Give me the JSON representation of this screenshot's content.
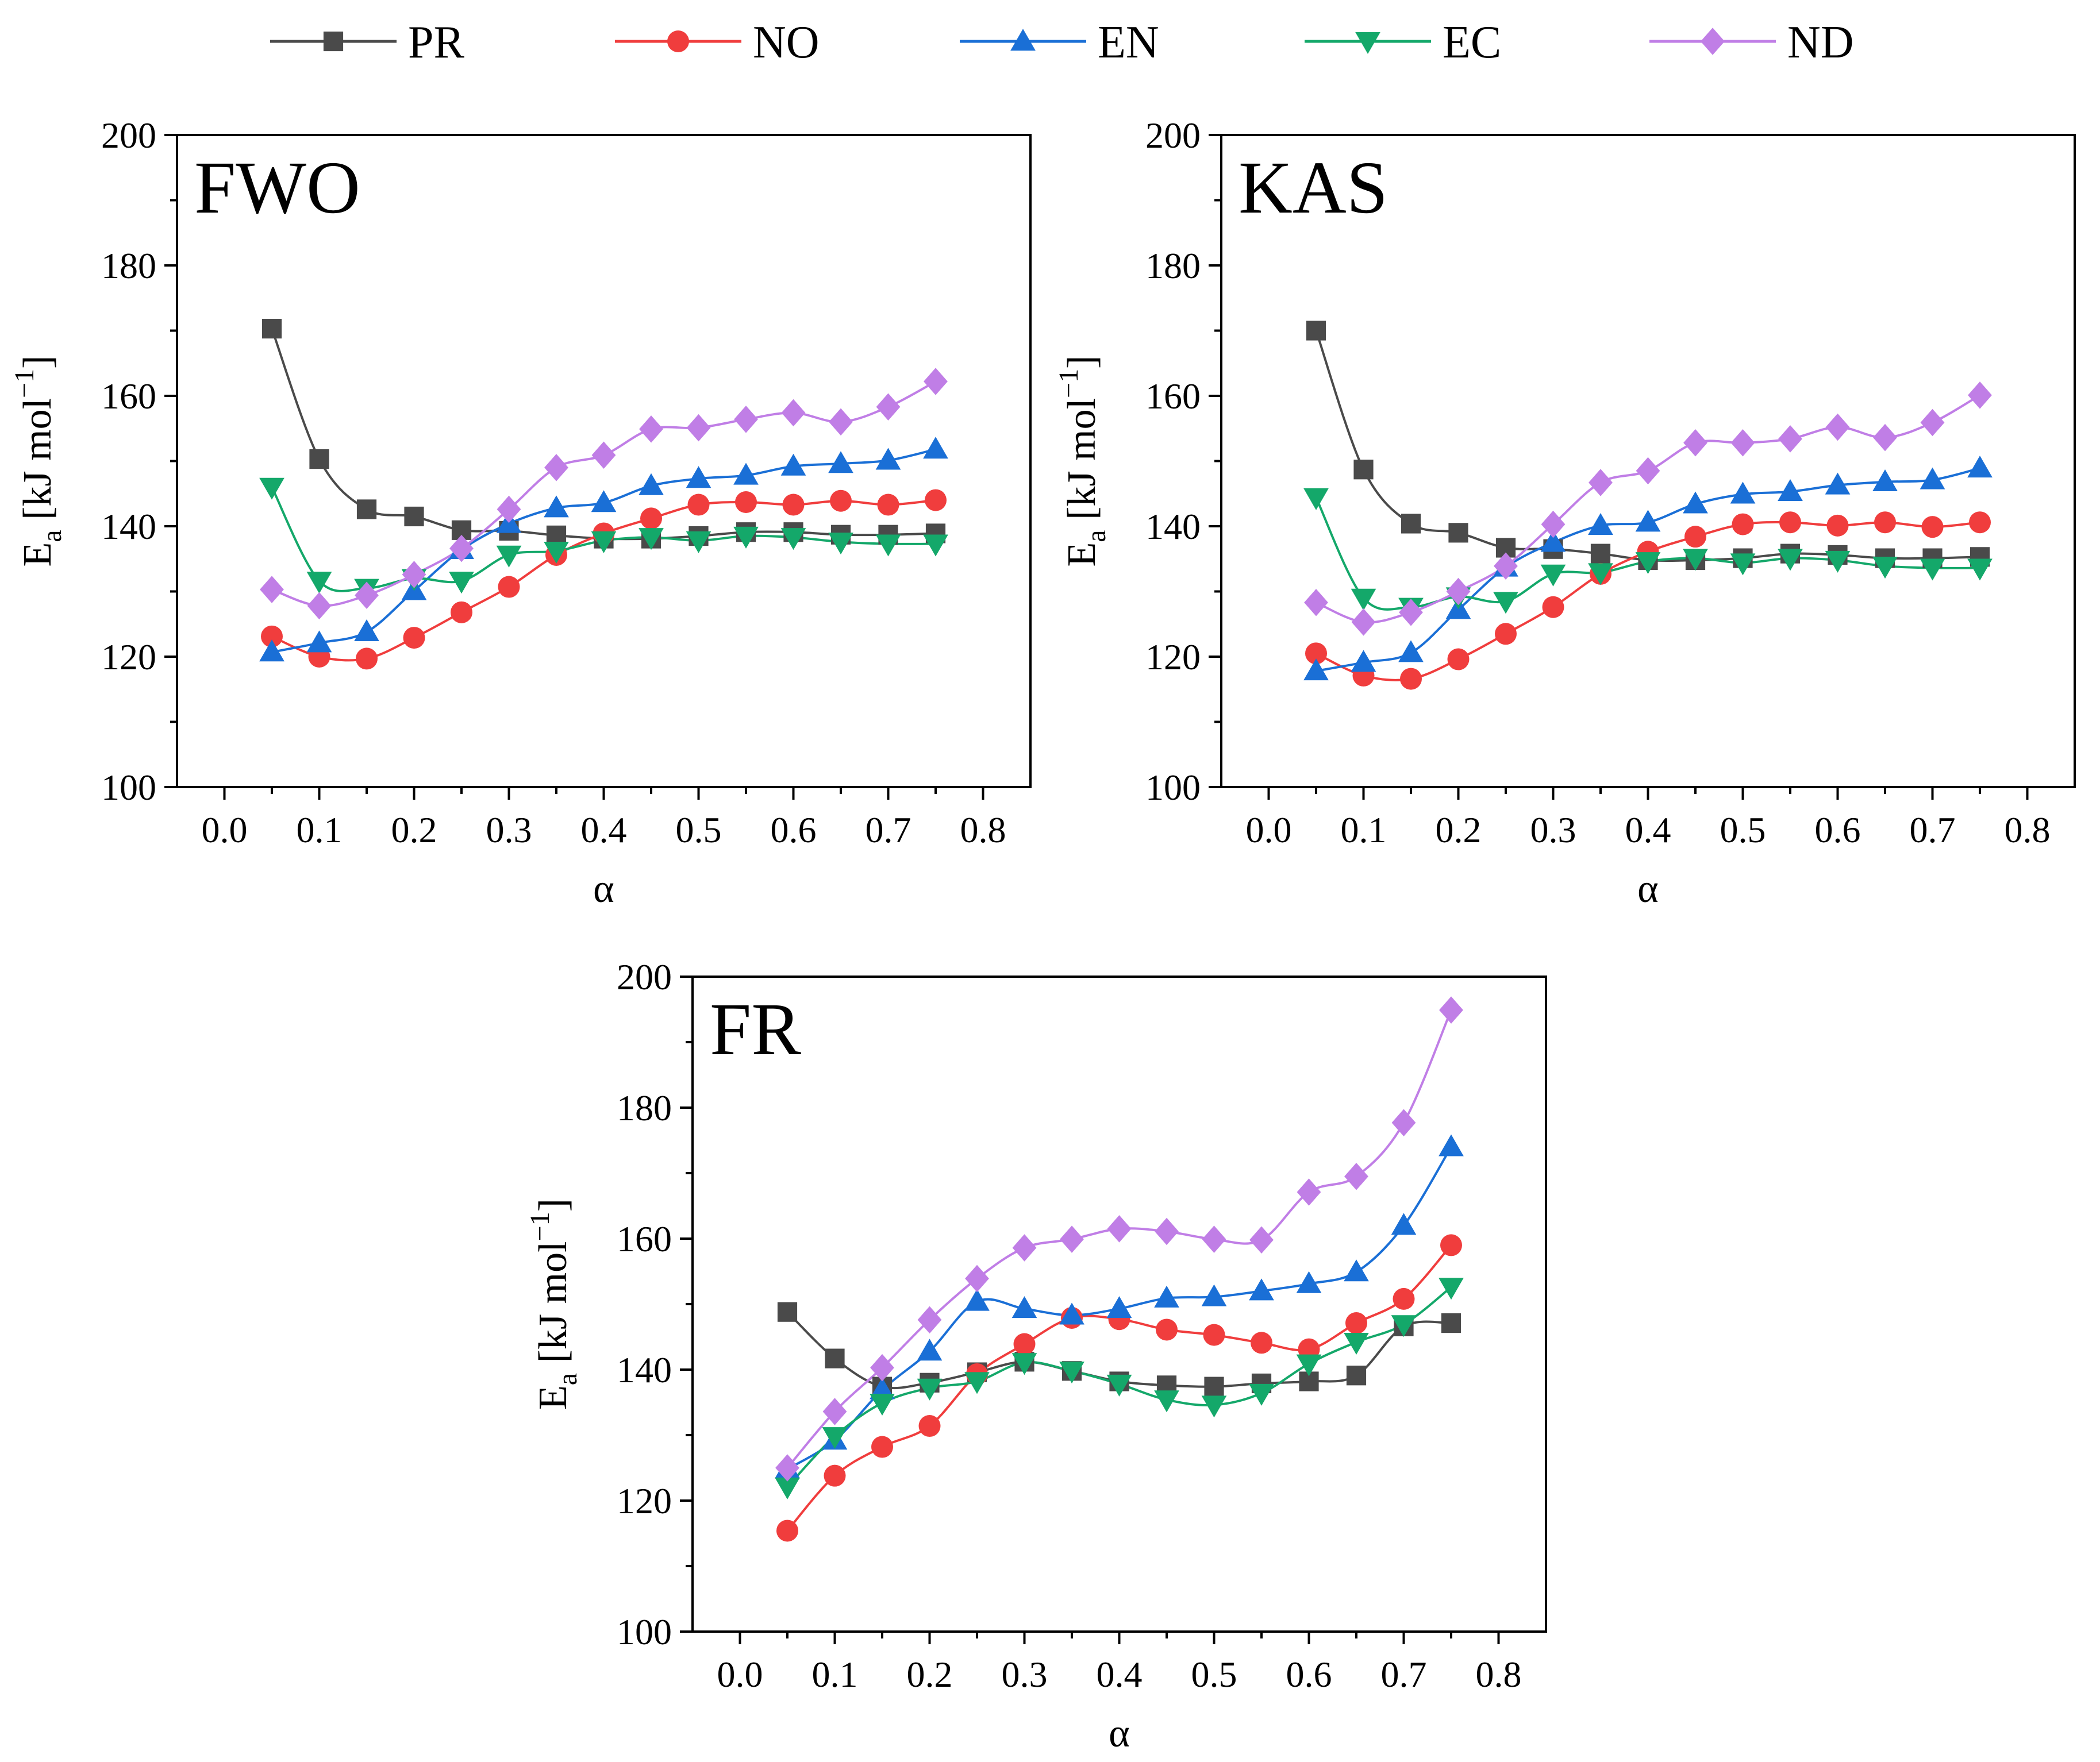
{
  "legend": [
    {
      "name": "PR",
      "color": "#4a4a4a",
      "marker": "square"
    },
    {
      "name": "NO",
      "color": "#f03d3d",
      "marker": "circle"
    },
    {
      "name": "EN",
      "color": "#1a6fd6",
      "marker": "triangle-up"
    },
    {
      "name": "EC",
      "color": "#14a86a",
      "marker": "triangle-down"
    },
    {
      "name": "ND",
      "color": "#c07ee6",
      "marker": "diamond"
    }
  ],
  "chart_data": [
    {
      "type": "line",
      "title": "FWO",
      "xlabel": "α",
      "ylabel_main": "E",
      "ylabel_sub": "a",
      "ylabel_rest": " [kJ mol",
      "ylabel_sup": "−1",
      "ylabel_end": "]",
      "xlim": [
        -0.05,
        0.85
      ],
      "ylim": [
        100,
        200
      ],
      "xticks": [
        "0.0",
        "0.1",
        "0.2",
        "0.3",
        "0.4",
        "0.5",
        "0.6",
        "0.7",
        "0.8"
      ],
      "yticks": [
        "100",
        "120",
        "140",
        "160",
        "180",
        "200"
      ],
      "x": [
        0.05,
        0.1,
        0.15,
        0.2,
        0.25,
        0.3,
        0.35,
        0.4,
        0.45,
        0.5,
        0.55,
        0.6,
        0.65,
        0.7,
        0.75
      ],
      "series": [
        {
          "name": "PR",
          "values": [
            170.3,
            150.3,
            142.6,
            141.5,
            139.4,
            139.3,
            138.6,
            138.1,
            138.1,
            138.5,
            139.1,
            139.1,
            138.7,
            138.7,
            138.9
          ]
        },
        {
          "name": "NO",
          "values": [
            123.1,
            120.0,
            119.7,
            122.9,
            126.8,
            130.7,
            135.6,
            138.9,
            141.2,
            143.3,
            143.7,
            143.3,
            143.9,
            143.3,
            144.0
          ]
        },
        {
          "name": "EN",
          "values": [
            120.7,
            122.1,
            123.8,
            130.1,
            136.4,
            140.4,
            142.8,
            143.6,
            146.2,
            147.3,
            147.8,
            149.2,
            149.6,
            150.1,
            151.8
          ]
        },
        {
          "name": "EC",
          "values": [
            146.0,
            131.6,
            130.5,
            132.0,
            131.6,
            135.6,
            136.2,
            137.8,
            138.3,
            137.8,
            138.5,
            138.3,
            137.6,
            137.3,
            137.3
          ]
        },
        {
          "name": "ND",
          "values": [
            130.3,
            127.8,
            129.4,
            132.6,
            136.6,
            142.6,
            149.0,
            150.9,
            154.9,
            155.1,
            156.4,
            157.4,
            156.0,
            158.3,
            162.2
          ]
        }
      ]
    },
    {
      "type": "line",
      "title": "KAS",
      "xlabel": "α",
      "ylabel_main": "E",
      "ylabel_sub": "a",
      "ylabel_rest": " [kJ mol",
      "ylabel_sup": "−1",
      "ylabel_end": "]",
      "xlim": [
        -0.05,
        0.85
      ],
      "ylim": [
        100,
        200
      ],
      "xticks": [
        "0.0",
        "0.1",
        "0.2",
        "0.3",
        "0.4",
        "0.5",
        "0.6",
        "0.7",
        "0.8"
      ],
      "yticks": [
        "100",
        "120",
        "140",
        "160",
        "180",
        "200"
      ],
      "x": [
        0.05,
        0.1,
        0.15,
        0.2,
        0.25,
        0.3,
        0.35,
        0.4,
        0.45,
        0.5,
        0.55,
        0.6,
        0.65,
        0.7,
        0.75
      ],
      "series": [
        {
          "name": "PR",
          "values": [
            170.0,
            148.7,
            140.4,
            139.0,
            136.7,
            136.5,
            135.8,
            134.8,
            134.8,
            135.1,
            135.8,
            135.6,
            135.1,
            135.1,
            135.3
          ]
        },
        {
          "name": "NO",
          "values": [
            120.5,
            117.1,
            116.6,
            119.6,
            123.5,
            127.6,
            132.7,
            136.1,
            138.4,
            140.3,
            140.6,
            140.1,
            140.6,
            139.9,
            140.6
          ]
        },
        {
          "name": "EN",
          "values": [
            117.8,
            119.1,
            120.6,
            127.2,
            133.7,
            137.5,
            140.1,
            140.6,
            143.4,
            144.9,
            145.3,
            146.3,
            146.8,
            147.1,
            148.9
          ]
        },
        {
          "name": "EC",
          "values": [
            144.4,
            129.0,
            127.6,
            129.2,
            128.5,
            132.7,
            132.9,
            134.6,
            135.1,
            134.4,
            135.1,
            134.8,
            133.9,
            133.6,
            133.6
          ]
        },
        {
          "name": "ND",
          "values": [
            128.3,
            125.3,
            126.8,
            130.0,
            133.9,
            140.3,
            146.7,
            148.5,
            152.8,
            152.8,
            153.4,
            155.2,
            153.6,
            155.9,
            160.1
          ]
        }
      ]
    },
    {
      "type": "line",
      "title": "FR",
      "xlabel": "α",
      "ylabel_main": "E",
      "ylabel_sub": "a",
      "ylabel_rest": " [kJ mol",
      "ylabel_sup": "−1",
      "ylabel_end": "]",
      "xlim": [
        -0.05,
        0.85
      ],
      "ylim": [
        100,
        200
      ],
      "xticks": [
        "0.0",
        "0.1",
        "0.2",
        "0.3",
        "0.4",
        "0.5",
        "0.6",
        "0.7",
        "0.8"
      ],
      "yticks": [
        "100",
        "120",
        "140",
        "160",
        "180",
        "200"
      ],
      "x": [
        0.05,
        0.1,
        0.15,
        0.2,
        0.25,
        0.3,
        0.35,
        0.4,
        0.45,
        0.5,
        0.55,
        0.6,
        0.65,
        0.7,
        0.75
      ],
      "series": [
        {
          "name": "PR",
          "values": [
            148.8,
            141.7,
            137.4,
            138.0,
            139.6,
            141.2,
            139.8,
            138.2,
            137.6,
            137.4,
            137.9,
            138.2,
            139.1,
            146.6,
            147.1
          ]
        },
        {
          "name": "NO",
          "values": [
            115.4,
            123.8,
            128.2,
            131.4,
            139.3,
            143.9,
            147.9,
            147.7,
            146.1,
            145.3,
            144.1,
            143.1,
            147.1,
            150.8,
            159.0
          ]
        },
        {
          "name": "EN",
          "values": [
            124.8,
            129.2,
            136.9,
            142.8,
            150.4,
            149.3,
            148.3,
            149.3,
            150.9,
            151.1,
            152.0,
            153.1,
            154.9,
            162.0,
            174.0
          ]
        },
        {
          "name": "EC",
          "values": [
            122.1,
            129.8,
            134.9,
            137.2,
            138.2,
            141.1,
            139.8,
            137.8,
            135.4,
            134.6,
            136.4,
            140.9,
            144.2,
            146.9,
            152.6
          ]
        },
        {
          "name": "ND",
          "values": [
            125.0,
            133.6,
            140.3,
            147.6,
            153.9,
            158.6,
            159.9,
            161.5,
            161.1,
            159.9,
            159.8,
            167.1,
            169.5,
            177.7,
            194.9
          ]
        }
      ]
    }
  ]
}
